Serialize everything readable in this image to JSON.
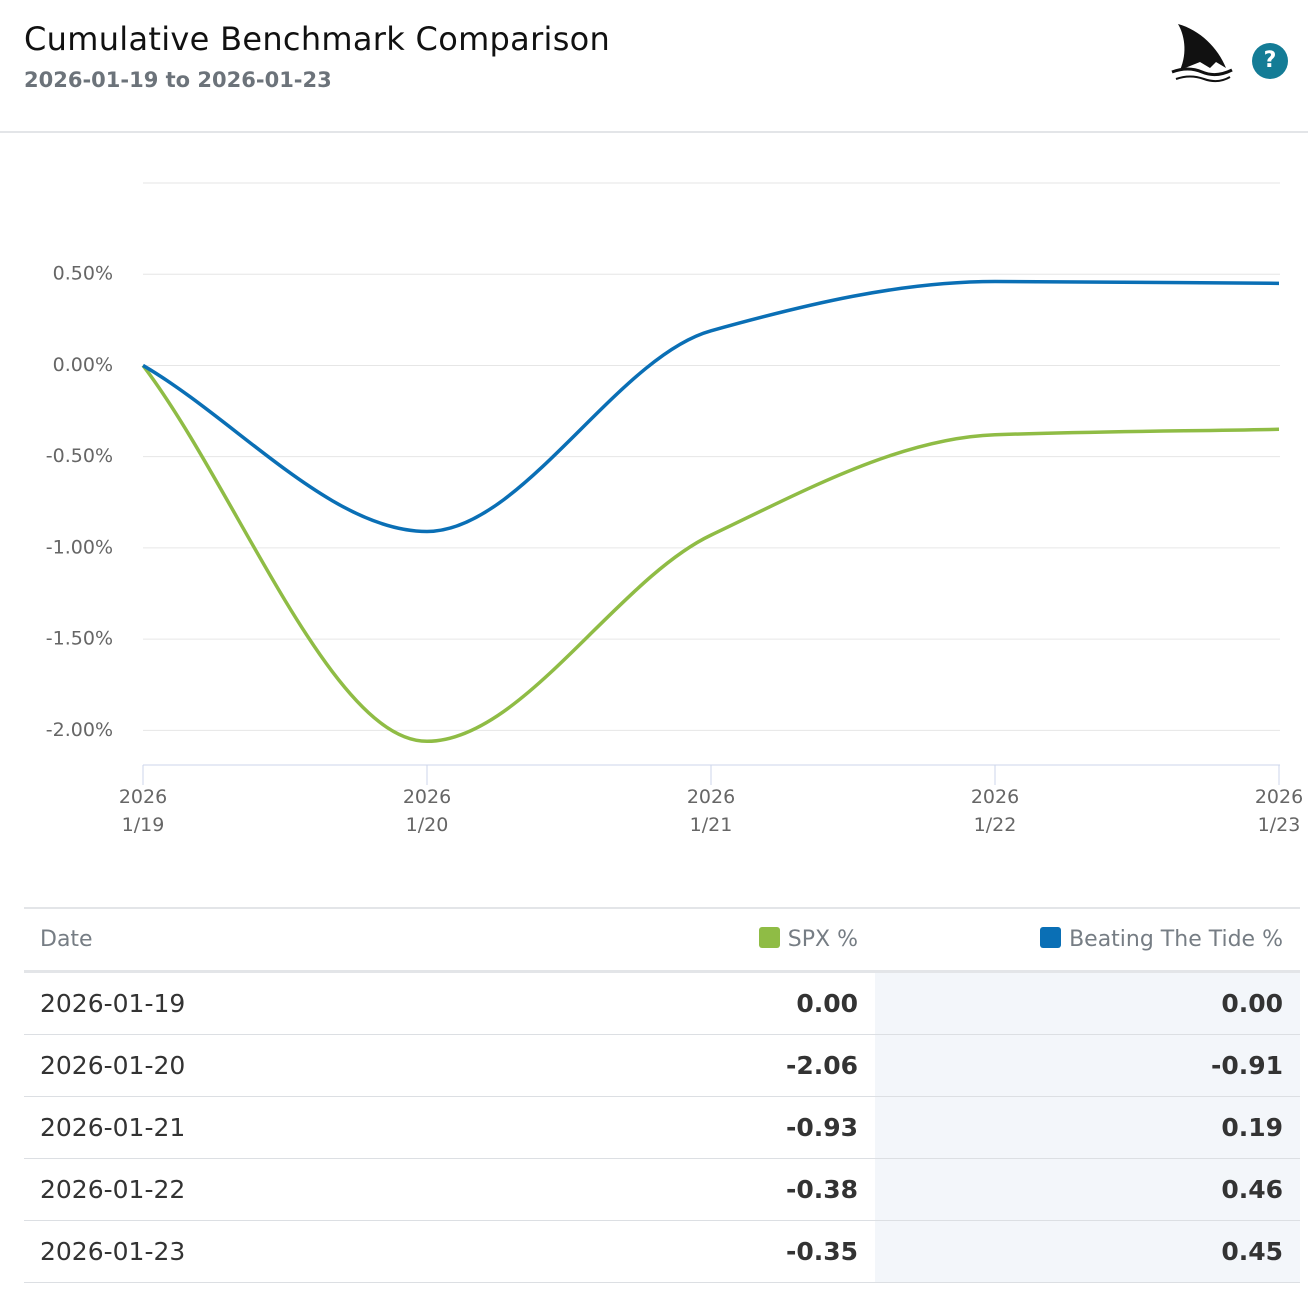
{
  "header": {
    "title": "Cumulative Benchmark Comparison",
    "subtitle": "2026-01-19 to 2026-01-23",
    "help": "?"
  },
  "chart_data": {
    "type": "line",
    "x": [
      "2026-01-19",
      "2026-01-20",
      "2026-01-21",
      "2026-01-22",
      "2026-01-23"
    ],
    "xticks": [
      {
        "value": "2026-01-19",
        "label": [
          "2026",
          "1/19"
        ]
      },
      {
        "value": "2026-01-20",
        "label": [
          "2026",
          "1/20"
        ]
      },
      {
        "value": "2026-01-21",
        "label": [
          "2026",
          "1/21"
        ]
      },
      {
        "value": "2026-01-22",
        "label": [
          "2026",
          "1/22"
        ]
      },
      {
        "value": "2026-01-23",
        "label": [
          "2026",
          "1/23"
        ]
      }
    ],
    "ylim": [
      -2.19,
      1.0
    ],
    "yticks": [
      {
        "value": -2,
        "label": "-2.00%"
      },
      {
        "value": -1.5,
        "label": "-1.50%"
      },
      {
        "value": -1,
        "label": "-1.00%"
      },
      {
        "value": -0.5,
        "label": "-0.50%"
      },
      {
        "value": 0,
        "label": "0.00%"
      },
      {
        "value": 0.5,
        "label": "0.50%"
      }
    ],
    "grid": true,
    "series": [
      {
        "name": "SPX %",
        "color": "#8fbc45",
        "values": [
          0,
          -2.06,
          -0.93,
          -0.38,
          -0.35
        ],
        "value_labels": [
          "0.00",
          "-2.06",
          "-0.93",
          "-0.38",
          "-0.35"
        ]
      },
      {
        "name": "Beating The Tide %",
        "color": "#0a6fb5",
        "values": [
          0,
          -0.91,
          0.19,
          0.46,
          0.45
        ],
        "value_labels": [
          "0.00",
          "-0.91",
          "0.19",
          "0.46",
          "0.45"
        ]
      }
    ]
  },
  "table": {
    "date_header": "Date"
  }
}
